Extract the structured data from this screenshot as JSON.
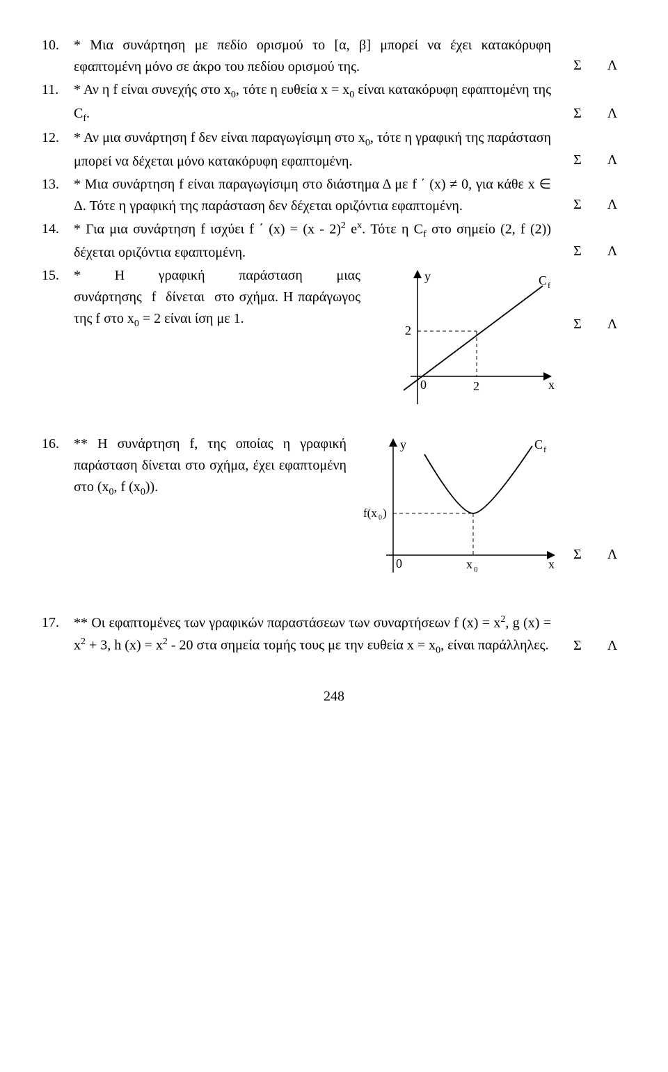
{
  "items": [
    {
      "num": "10.",
      "text": "* Μια συνάρτηση με πεδίο ορισμού το [α, β] μπορεί να έχει κατακόρυφη εφαπτομένη μόνο σε άκρο του πεδίου ορισμού της.",
      "S": "Σ",
      "L": "Λ"
    },
    {
      "num": "11.",
      "text_html": "* Αν η f είναι συνεχής στο x<sub>0</sub>, τότε η ευθεία x = x<sub>0</sub> είναι κατακόρυφη εφαπτομένη της C<sub>f</sub>.",
      "S": "Σ",
      "L": "Λ"
    },
    {
      "num": "12.",
      "text_html": "* Αν μια συνάρτηση f δεν είναι παραγωγίσιμη στο x<sub>0</sub>, τότε η γραφική της παράσταση μπορεί να δέχεται μόνο κατακόρυφη εφαπτομένη.",
      "S": "Σ",
      "L": "Λ"
    },
    {
      "num": "13.",
      "text_html": "* Μια συνάρτηση f είναι παραγωγίσιμη στο διάστημα Δ με f&nbsp;΄&nbsp;(x) ≠ 0, για κάθε x ∈ Δ. Τότε η γραφική της παράσταση δεν δέχεται οριζόντια εφαπτομένη.",
      "S": "Σ",
      "L": "Λ"
    },
    {
      "num": "14.",
      "text_html": "* Για μια συνάρτηση f ισχύει f&nbsp;΄ (x) = (x - 2)<sup>2</sup> e<sup>x</sup>. Τότε η C<sub>f</sub> στο σημείο (2, f (2)) δέχεται οριζόντια εφαπτομένη.",
      "S": "Σ",
      "L": "Λ"
    },
    {
      "num": "15.",
      "text_html": "* Η γραφική παράσταση μιας συνάρτησης&nbsp;&nbsp;f&nbsp;&nbsp;δίνεται&nbsp;&nbsp;στο σχήμα. Η παράγωγος της f στο x<sub>0</sub> = 2 είναι ίση με 1.",
      "S": "Σ",
      "L": "Λ",
      "figure": "fig15"
    },
    {
      "num": "16.",
      "text_html": "** Η συνάρτηση f, της οποίας η γραφική παράσταση δίνεται στο σχήμα, έχει εφαπτομένη στο (x<sub>0</sub>, f (x<sub>0</sub>)).",
      "S": "Σ",
      "L": "Λ",
      "figure": "fig16"
    },
    {
      "num": "17.",
      "text_html": "** Οι εφαπτομένες των γραφικών παραστάσεων των συναρτήσεων f&nbsp;(x) = x<sup>2</sup>, g&nbsp;(x) = x<sup>2</sup> + 3, h&nbsp;(x) = x<sup>2</sup> - 20 στα σημεία τομής τους με την ευθεία x = x<sub>0</sub>, είναι παράλληλες.",
      "S": "Σ",
      "L": "Λ"
    }
  ],
  "fig15": {
    "y_label": "y",
    "x_label": "x",
    "cf_label": "C",
    "origin_label": "0",
    "x_tick_label": "2",
    "y_tick_label": "2",
    "colors": {
      "axis": "#000000",
      "line": "#000000",
      "dash": "#000000"
    }
  },
  "fig16": {
    "y_label": "y",
    "x_label": "x",
    "cf_label": "C",
    "origin_label": "0",
    "x_tick_label": "x",
    "fx_label": "f(x₀)",
    "colors": {
      "axis": "#000000",
      "line": "#000000",
      "dash": "#000000"
    }
  },
  "page_number": "248"
}
